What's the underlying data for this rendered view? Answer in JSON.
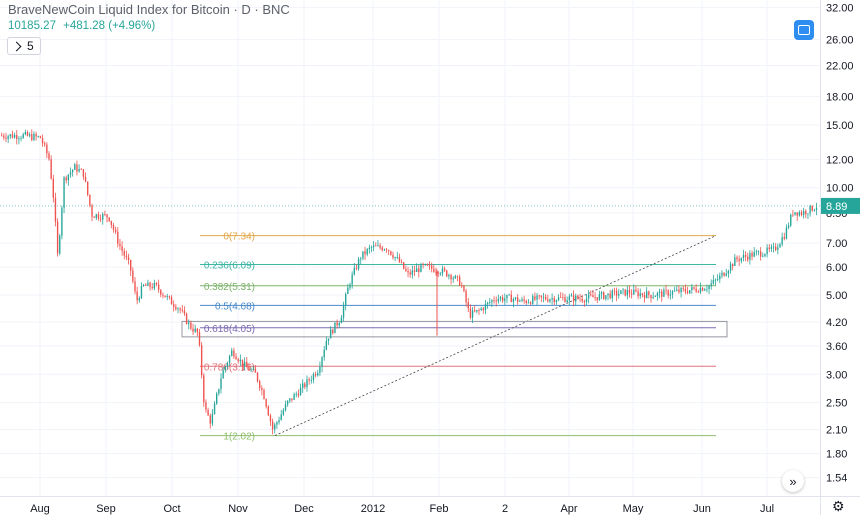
{
  "header": {
    "title": "BraveNewCoin Liquid Index for Bitcoin · D · BNC",
    "last": "10185.27",
    "change": "+481.28 (+4.96%)",
    "indicator_count": "5"
  },
  "colors": {
    "up": "#26a69a",
    "down": "#ef5350",
    "accent": "#2962ff"
  },
  "chart_data": {
    "type": "candlestick",
    "x_tick_labels": [
      "Aug",
      "Sep",
      "Oct",
      "Nov",
      "Dec",
      "2012",
      "Feb",
      "2",
      "Apr",
      "May",
      "Jun",
      "Jul"
    ],
    "y_tick_labels": [
      "1.54",
      "1.80",
      "2.10",
      "2.50",
      "3.00",
      "3.60",
      "4.20",
      "5.00",
      "6.00",
      "7.00",
      "8.50",
      "10.00",
      "12.00",
      "15.00",
      "18.00",
      "22.00",
      "26.00",
      "32.00"
    ],
    "y_scale": "log",
    "y_range": [
      1.45,
      32.5
    ],
    "last_price_label": "8.89",
    "last_price": 8.89,
    "price_path": [
      [
        "Jul 25",
        14.0
      ],
      [
        "Aug 2",
        13.8
      ],
      [
        "Aug 6",
        12.0
      ],
      [
        "Aug 8",
        9.4
      ],
      [
        "Aug 10",
        6.4
      ],
      [
        "Aug 13",
        10.6
      ],
      [
        "Aug 18",
        11.4
      ],
      [
        "Aug 22",
        11.0
      ],
      [
        "Aug 26",
        8.4
      ],
      [
        "Sep 3",
        8.3
      ],
      [
        "Sep 8",
        6.9
      ],
      [
        "Sep 13",
        6.0
      ],
      [
        "Sep 16",
        4.8
      ],
      [
        "Sep 19",
        5.3
      ],
      [
        "Sep 25",
        5.3
      ],
      [
        "Oct 1",
        4.8
      ],
      [
        "Oct 5",
        4.6
      ],
      [
        "Oct 10",
        4.1
      ],
      [
        "Oct 14",
        3.9
      ],
      [
        "Oct 17",
        2.4
      ],
      [
        "Oct 20",
        2.2
      ],
      [
        "Oct 25",
        3.0
      ],
      [
        "Oct 30",
        3.5
      ],
      [
        "Nov 4",
        3.2
      ],
      [
        "Nov 10",
        3.0
      ],
      [
        "Nov 14",
        2.6
      ],
      [
        "Nov 18",
        2.1
      ],
      [
        "Nov 25",
        2.5
      ],
      [
        "Dec 2",
        2.8
      ],
      [
        "Dec 8",
        3.1
      ],
      [
        "Dec 12",
        3.8
      ],
      [
        "Dec 18",
        4.3
      ],
      [
        "Dec 22",
        5.4
      ],
      [
        "Dec 27",
        6.4
      ],
      [
        "Jan 1",
        6.8
      ],
      [
        "Jan 8",
        6.8
      ],
      [
        "Jan 11",
        6.5
      ],
      [
        "Jan 14",
        6.2
      ],
      [
        "Jan 18",
        5.7
      ],
      [
        "Jan 25",
        6.0
      ],
      [
        "Feb 1",
        5.9
      ],
      [
        "Feb 7",
        5.7
      ],
      [
        "Feb 12",
        5.4
      ],
      [
        "Feb 16",
        4.4
      ],
      [
        "Feb 20",
        4.5
      ],
      [
        "Feb 28",
        4.9
      ],
      [
        "Mar 5",
        4.9
      ],
      [
        "Mar 10",
        4.8
      ],
      [
        "Mar 20",
        4.9
      ],
      [
        "Mar 30",
        4.9
      ],
      [
        "Apr 10",
        4.9
      ],
      [
        "Apr 20",
        5.0
      ],
      [
        "Apr 30",
        5.1
      ],
      [
        "May 10",
        5.0
      ],
      [
        "May 20",
        5.1
      ],
      [
        "May 30",
        5.2
      ],
      [
        "Jun 5",
        5.3
      ],
      [
        "Jun 10",
        5.6
      ],
      [
        "Jun 18",
        6.3
      ],
      [
        "Jun 26",
        6.5
      ],
      [
        "Jul 5",
        6.7
      ],
      [
        "Jul 10",
        7.4
      ],
      [
        "Jul 14",
        8.6
      ],
      [
        "Jul 18",
        8.5
      ],
      [
        "Jul 22",
        8.7
      ],
      [
        "Jul 25",
        8.89
      ]
    ],
    "fibonacci": {
      "levels": [
        {
          "ratio": "0",
          "price": 7.34,
          "label": "0(7.34)",
          "color": "#e0a84a"
        },
        {
          "ratio": "0.236",
          "price": 6.09,
          "label": "0.236(6.09)",
          "color": "#3db6a4"
        },
        {
          "ratio": "0.382",
          "price": 5.31,
          "label": "0.382(5.31)",
          "color": "#7cb46a"
        },
        {
          "ratio": "0.5",
          "price": 4.68,
          "label": "0.5(4.68)",
          "color": "#4a89c8"
        },
        {
          "ratio": "0.618",
          "price": 4.05,
          "label": "0.618(4.05)",
          "color": "#7d6bb3"
        },
        {
          "ratio": "0.786",
          "price": 3.16,
          "label": "0.786(3.16)",
          "color": "#e0737a"
        },
        {
          "ratio": "1",
          "price": 2.02,
          "label": "1(2.02)",
          "color": "#8fbf6e"
        }
      ]
    },
    "grid": true
  }
}
